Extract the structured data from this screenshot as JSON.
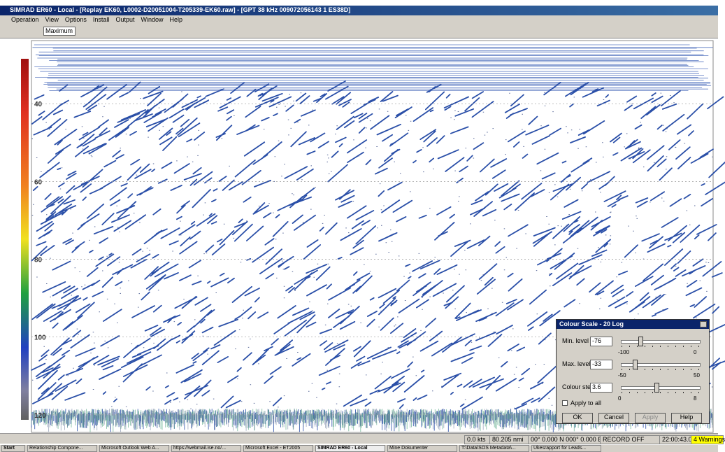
{
  "window": {
    "title": "SIMRAD ER60 - Local - [Replay EK60, L0002-D20051004-T205339-EK60.raw] - [GPT 38 kHz 009072056143 1 ES38D]"
  },
  "menu": [
    "Operation",
    "View",
    "Options",
    "Install",
    "Output",
    "Window",
    "Help"
  ],
  "toolbar": {
    "mode": "Maximum"
  },
  "echogram": {
    "depth_range": [
      24.5,
      122
    ],
    "depth_ticks": [
      40,
      60,
      80,
      100,
      120
    ]
  },
  "dialog": {
    "title": "Colour Scale - 20 Log",
    "controls": [
      {
        "label": "Min. level",
        "value": -76,
        "range": [
          -100,
          0
        ]
      },
      {
        "label": "Max. level",
        "value": -33,
        "range": [
          -50,
          50
        ]
      },
      {
        "label": "Colour step",
        "value": 3.6,
        "range": [
          0,
          8
        ]
      }
    ],
    "checkbox": "Apply to all",
    "buttons": [
      "OK",
      "Cancel",
      "Apply",
      "Help"
    ]
  },
  "status": [
    "0.0 kts",
    "80.205 nmi",
    "00° 0.000 N 000° 0.000 E",
    "RECORD OFF",
    "22:00:43.06",
    "4 Warnings"
  ],
  "taskbar": {
    "start": "Start",
    "items": [
      "Relationship Compone...",
      "Microsoft Outlook Web A...",
      "https://webmail.ise.no/...",
      "Microsoft Excel - ET2005",
      "SIMRAD ER60 - Local",
      "Mine Dokumenter",
      "T:\\Data\\SOS Metadata\\...",
      "Ukesrapport for Leads..."
    ]
  }
}
